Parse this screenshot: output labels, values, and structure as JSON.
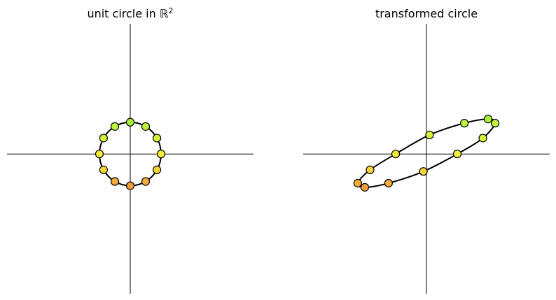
{
  "chart_data": [
    {
      "type": "scatter",
      "title": "unit circle in",
      "title_symbol": "ℝ",
      "title_exp": "2",
      "xlabel": "",
      "ylabel": "",
      "xlim": [
        -4,
        4
      ],
      "ylim": [
        -4.4,
        4.1
      ],
      "grid": false,
      "curve": "circle",
      "points": [
        {
          "x": 1.0,
          "y": 0.0,
          "color": "#f5ee3a"
        },
        {
          "x": 0.866,
          "y": 0.5,
          "color": "#daf23a"
        },
        {
          "x": 0.5,
          "y": 0.866,
          "color": "#c3f53a"
        },
        {
          "x": 0.0,
          "y": 1.0,
          "color": "#aaf03a"
        },
        {
          "x": -0.5,
          "y": 0.866,
          "color": "#bdf53a"
        },
        {
          "x": -0.866,
          "y": 0.5,
          "color": "#d6f23a"
        },
        {
          "x": -1.0,
          "y": 0.0,
          "color": "#f5ea3a"
        },
        {
          "x": -0.866,
          "y": -0.5,
          "color": "#f7d53a"
        },
        {
          "x": -0.5,
          "y": -0.866,
          "color": "#f5ac3a"
        },
        {
          "x": 0.0,
          "y": -1.0,
          "color": "#f29c3a"
        },
        {
          "x": 0.5,
          "y": -0.866,
          "color": "#f5ac3a"
        },
        {
          "x": 0.866,
          "y": -0.5,
          "color": "#f5d23a"
        }
      ]
    },
    {
      "type": "scatter",
      "title": "transformed circle",
      "xlabel": "",
      "ylabel": "",
      "xlim": [
        -4,
        4
      ],
      "ylim": [
        -4.4,
        4.1
      ],
      "grid": false,
      "curve": "ellipse",
      "points": [
        {
          "x": 1.0,
          "y": 0.0,
          "color": "#f5ee3a"
        },
        {
          "x": 1.83,
          "y": 0.5,
          "color": "#daf23a"
        },
        {
          "x": 2.23,
          "y": 0.97,
          "color": "#c3f53a"
        },
        {
          "x": 2.0,
          "y": 1.1,
          "color": "#aaf03a"
        },
        {
          "x": 1.23,
          "y": 0.97,
          "color": "#bdf53a"
        },
        {
          "x": 0.1,
          "y": 0.6,
          "color": "#d6f23a"
        },
        {
          "x": -1.0,
          "y": 0.0,
          "color": "#f5ea3a"
        },
        {
          "x": -1.83,
          "y": -0.5,
          "color": "#f7d53a"
        },
        {
          "x": -2.23,
          "y": -0.92,
          "color": "#f5ac3a"
        },
        {
          "x": -2.0,
          "y": -1.05,
          "color": "#f29c3a"
        },
        {
          "x": -1.23,
          "y": -0.92,
          "color": "#f5ac3a"
        },
        {
          "x": -0.1,
          "y": -0.55,
          "color": "#f5d23a"
        }
      ]
    }
  ]
}
